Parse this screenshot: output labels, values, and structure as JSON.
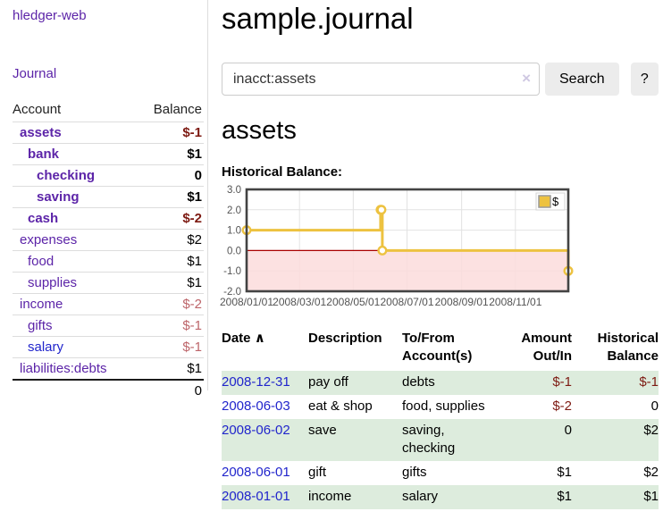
{
  "colors": {
    "purple_link": "#5c24a8",
    "blue_link": "#2125cc",
    "negative_strong": "#7d1a12",
    "negative_soft": "#bd656a",
    "row_stripe": "#ddecdd",
    "button_bg": "#ececec",
    "clear_icon": "#cfc8e2",
    "chart_line": "#edc240",
    "chart_border": "#434343",
    "chart_tick_text": "#545454",
    "negative_region_fill": "#fbdcdc",
    "zero_line": "#aa0000"
  },
  "app": {
    "brand": "hledger-web",
    "nav_journal": "Journal"
  },
  "sidebar": {
    "header": {
      "account": "Account",
      "balance": "Balance"
    },
    "accounts": [
      {
        "name": "assets",
        "depth": 1,
        "balance": "$-1",
        "bold": true,
        "neg": "strong",
        "link": "purple"
      },
      {
        "name": "bank",
        "depth": 2,
        "balance": "$1",
        "bold": true,
        "neg": null,
        "link": "purple"
      },
      {
        "name": "checking",
        "depth": 3,
        "balance": "0",
        "bold": true,
        "neg": null,
        "link": "purple"
      },
      {
        "name": "saving",
        "depth": 3,
        "balance": "$1",
        "bold": true,
        "neg": null,
        "link": "purple"
      },
      {
        "name": "cash",
        "depth": 2,
        "balance": "$-2",
        "bold": true,
        "neg": "strong",
        "link": "purple"
      },
      {
        "name": "expenses",
        "depth": 1,
        "balance": "$2",
        "bold": false,
        "neg": null,
        "link": "purple"
      },
      {
        "name": "food",
        "depth": 2,
        "balance": "$1",
        "bold": false,
        "neg": null,
        "link": "purple"
      },
      {
        "name": "supplies",
        "depth": 2,
        "balance": "$1",
        "bold": false,
        "neg": null,
        "link": "purple"
      },
      {
        "name": "income",
        "depth": 1,
        "balance": "$-2",
        "bold": false,
        "neg": "soft",
        "link": "purple"
      },
      {
        "name": "gifts",
        "depth": 2,
        "balance": "$-1",
        "bold": false,
        "neg": "soft",
        "link": "purple"
      },
      {
        "name": "salary",
        "depth": 2,
        "balance": "$-1",
        "bold": false,
        "neg": "soft",
        "link": "blue"
      },
      {
        "name": "liabilities:debts",
        "depth": 1,
        "balance": "$1",
        "bold": false,
        "neg": null,
        "link": "purple"
      }
    ],
    "total": "0"
  },
  "main": {
    "title": "sample.journal",
    "search": {
      "value": "inacct:assets",
      "clear_icon": "×",
      "button": "Search",
      "help_button": "?"
    },
    "account_heading": "assets",
    "chart_label": "Historical Balance:"
  },
  "chart_data": {
    "type": "line",
    "title": "Historical Balance",
    "series": [
      {
        "name": "$",
        "color": "#edc240",
        "step": true,
        "points": [
          {
            "date": "2008-01-01",
            "value": 1
          },
          {
            "date": "2008-06-01",
            "value": 2
          },
          {
            "date": "2008-06-02",
            "value": 2
          },
          {
            "date": "2008-06-03",
            "value": 0
          },
          {
            "date": "2008-12-31",
            "value": -1
          }
        ]
      }
    ],
    "xlim": [
      "2008-01-01",
      "2008-12-31"
    ],
    "ylim": [
      -2,
      3
    ],
    "x_tick_labels": [
      "2008/01/01",
      "2008/03/01",
      "2008/05/01",
      "2008/07/01",
      "2008/09/01",
      "2008/11/01"
    ],
    "y_tick_values": [
      3,
      2,
      1,
      0,
      -1,
      -2
    ],
    "y_tick_labels": [
      "3.0",
      "2.0",
      "1.0",
      "0.0",
      "-1.0",
      "-2.0"
    ],
    "grid": true,
    "legend": {
      "label": "$",
      "position": "top-right"
    },
    "negative_region": {
      "from": -2,
      "to": 0,
      "fill": "#fbdcdc",
      "top_line_color": "#aa0000"
    }
  },
  "register": {
    "columns": {
      "date": "Date",
      "sort_icon": "∧",
      "description": "Description",
      "accounts": "To/From Account(s)",
      "amount": "Amount Out/In",
      "balance": "Historical Balance"
    },
    "rows": [
      {
        "date": "2008-12-31",
        "description": "pay off",
        "accounts": "debts",
        "amount": "$-1",
        "amount_neg": true,
        "balance": "$-1",
        "balance_neg": true
      },
      {
        "date": "2008-06-03",
        "description": "eat & shop",
        "accounts": "food, supplies",
        "amount": "$-2",
        "amount_neg": true,
        "balance": "0",
        "balance_neg": false
      },
      {
        "date": "2008-06-02",
        "description": "save",
        "accounts": "saving, checking",
        "amount": "0",
        "amount_neg": false,
        "balance": "$2",
        "balance_neg": false
      },
      {
        "date": "2008-06-01",
        "description": "gift",
        "accounts": "gifts",
        "amount": "$1",
        "amount_neg": false,
        "balance": "$2",
        "balance_neg": false
      },
      {
        "date": "2008-01-01",
        "description": "income",
        "accounts": "salary",
        "amount": "$1",
        "amount_neg": false,
        "balance": "$1",
        "balance_neg": false
      }
    ]
  }
}
